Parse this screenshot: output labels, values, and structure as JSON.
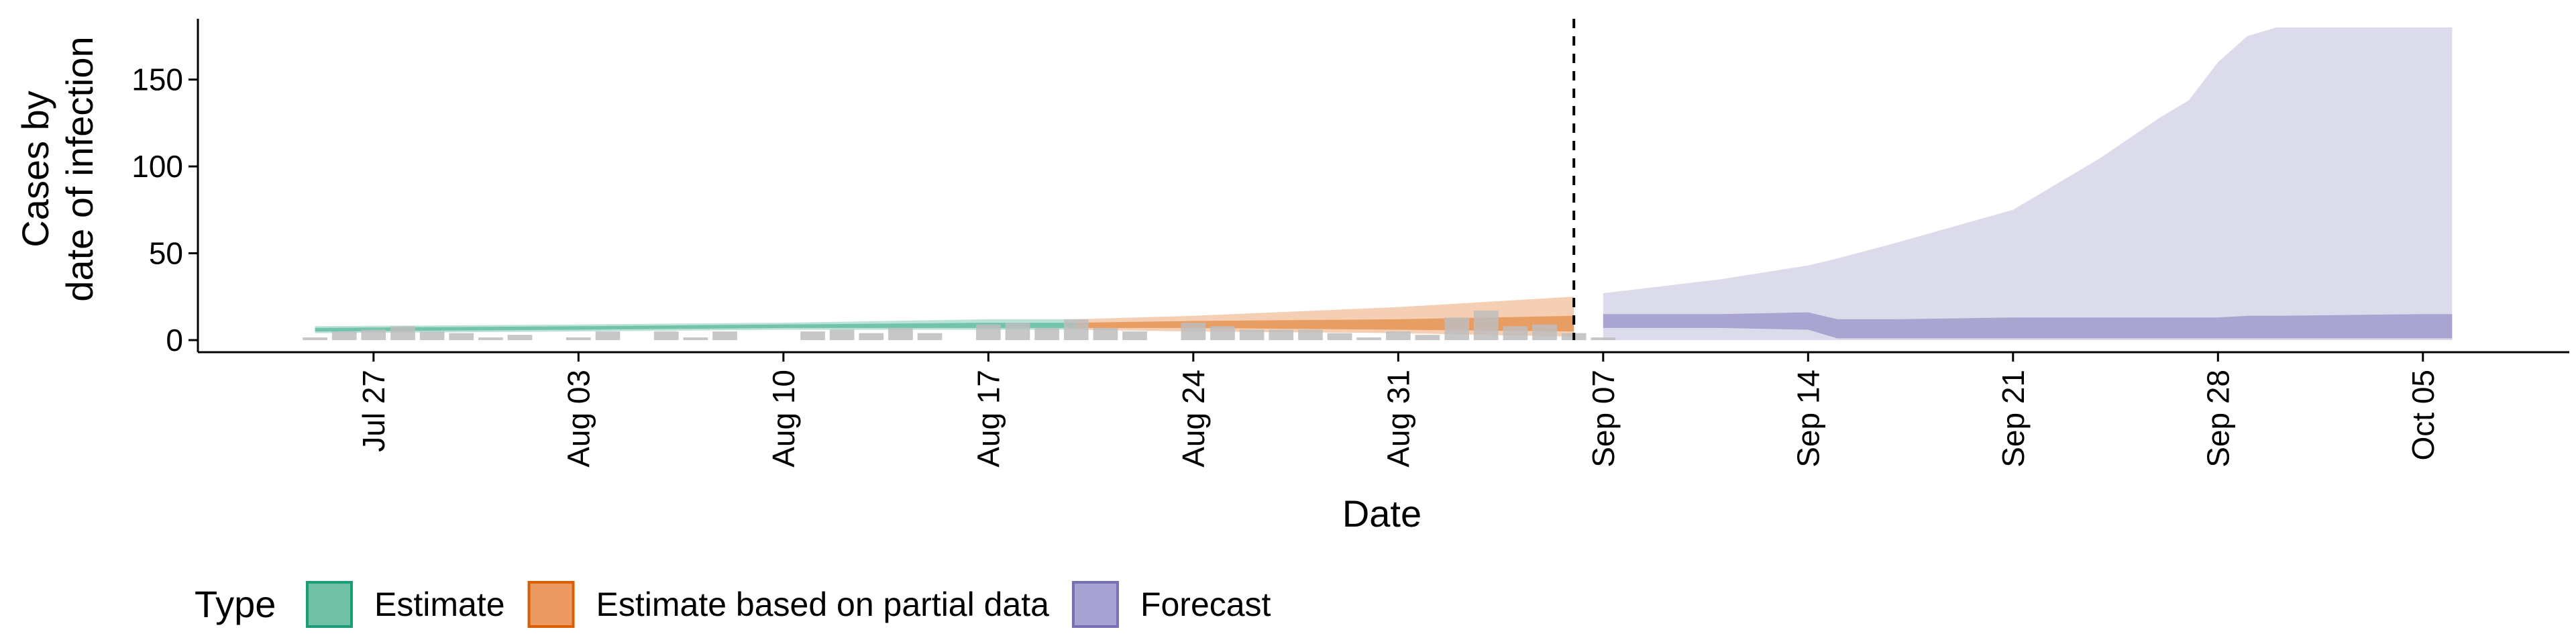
{
  "chart_data": {
    "type": "area",
    "xlabel": "Date",
    "ylabel": [
      "Cases by",
      "date of infection"
    ],
    "ylim": [
      0,
      185
    ],
    "yticks": [
      0,
      50,
      100,
      150
    ],
    "x_domain": [
      "2020-07-21",
      "2020-10-10"
    ],
    "xticks": [
      {
        "date": "2020-07-27",
        "label": "Jul 27"
      },
      {
        "date": "2020-08-03",
        "label": "Aug 03"
      },
      {
        "date": "2020-08-10",
        "label": "Aug 10"
      },
      {
        "date": "2020-08-17",
        "label": "Aug 17"
      },
      {
        "date": "2020-08-24",
        "label": "Aug 24"
      },
      {
        "date": "2020-08-31",
        "label": "Aug 31"
      },
      {
        "date": "2020-09-07",
        "label": "Sep 07"
      },
      {
        "date": "2020-09-14",
        "label": "Sep 14"
      },
      {
        "date": "2020-09-21",
        "label": "Sep 21"
      },
      {
        "date": "2020-09-28",
        "label": "Sep 28"
      },
      {
        "date": "2020-10-05",
        "label": "Oct 05"
      }
    ],
    "vline_date": "2020-09-06",
    "grid": false,
    "legend": {
      "title": "Type",
      "position": "bottom",
      "items": [
        {
          "label": "Estimate",
          "fill": "#71c1a6",
          "stroke": "#1b9e77"
        },
        {
          "label": "Estimate based on partial data",
          "fill": "#eb9b61",
          "stroke": "#d95f02"
        },
        {
          "label": "Forecast",
          "fill": "#a7a3d2",
          "stroke": "#7570b3"
        }
      ]
    },
    "observed_cases": {
      "color": "#bdbdbd",
      "points": [
        {
          "date": "2020-07-25",
          "value": 1
        },
        {
          "date": "2020-07-26",
          "value": 5
        },
        {
          "date": "2020-07-27",
          "value": 6
        },
        {
          "date": "2020-07-28",
          "value": 8
        },
        {
          "date": "2020-07-29",
          "value": 5
        },
        {
          "date": "2020-07-30",
          "value": 4
        },
        {
          "date": "2020-07-31",
          "value": 1
        },
        {
          "date": "2020-08-01",
          "value": 3
        },
        {
          "date": "2020-08-03",
          "value": 0
        },
        {
          "date": "2020-08-04",
          "value": 5
        },
        {
          "date": "2020-08-06",
          "value": 5
        },
        {
          "date": "2020-08-07",
          "value": 1
        },
        {
          "date": "2020-08-08",
          "value": 5
        },
        {
          "date": "2020-08-11",
          "value": 5
        },
        {
          "date": "2020-08-12",
          "value": 6
        },
        {
          "date": "2020-08-13",
          "value": 4
        },
        {
          "date": "2020-08-14",
          "value": 7
        },
        {
          "date": "2020-08-15",
          "value": 4
        },
        {
          "date": "2020-08-17",
          "value": 9
        },
        {
          "date": "2020-08-18",
          "value": 10
        },
        {
          "date": "2020-08-19",
          "value": 7
        },
        {
          "date": "2020-08-20",
          "value": 12
        },
        {
          "date": "2020-08-21",
          "value": 7
        },
        {
          "date": "2020-08-22",
          "value": 5
        },
        {
          "date": "2020-08-24",
          "value": 10
        },
        {
          "date": "2020-08-25",
          "value": 8
        },
        {
          "date": "2020-08-26",
          "value": 6
        },
        {
          "date": "2020-08-27",
          "value": 6
        },
        {
          "date": "2020-08-28",
          "value": 6
        },
        {
          "date": "2020-08-29",
          "value": 4
        },
        {
          "date": "2020-08-30",
          "value": 1
        },
        {
          "date": "2020-08-31",
          "value": 5
        },
        {
          "date": "2020-09-01",
          "value": 3
        },
        {
          "date": "2020-09-02",
          "value": 13
        },
        {
          "date": "2020-09-03",
          "value": 17
        },
        {
          "date": "2020-09-04",
          "value": 8
        },
        {
          "date": "2020-09-05",
          "value": 9
        },
        {
          "date": "2020-09-06",
          "value": 4
        },
        {
          "date": "2020-09-07",
          "value": 1
        }
      ]
    },
    "series": [
      {
        "name": "Estimate",
        "color": "#1b9e77",
        "points": [
          {
            "date": "2020-07-25",
            "lo90": 4,
            "hi90": 8,
            "lo50": 5,
            "hi50": 7
          },
          {
            "date": "2020-08-03",
            "lo90": 5,
            "hi90": 9,
            "lo50": 6,
            "hi50": 8
          },
          {
            "date": "2020-08-10",
            "lo90": 6,
            "hi90": 10,
            "lo50": 7,
            "hi50": 9
          },
          {
            "date": "2020-08-17",
            "lo90": 6,
            "hi90": 12,
            "lo50": 7,
            "hi50": 10
          },
          {
            "date": "2020-08-20",
            "lo90": 6,
            "hi90": 12,
            "lo50": 7,
            "hi50": 10
          }
        ]
      },
      {
        "name": "Estimate based on partial data",
        "color": "#d95f02",
        "points": [
          {
            "date": "2020-08-20",
            "lo90": 6,
            "hi90": 12,
            "lo50": 7,
            "hi50": 10
          },
          {
            "date": "2020-08-24",
            "lo90": 5,
            "hi90": 14,
            "lo50": 7,
            "hi50": 11
          },
          {
            "date": "2020-08-31",
            "lo90": 4,
            "hi90": 19,
            "lo50": 6,
            "hi50": 12
          },
          {
            "date": "2020-09-06",
            "lo90": 2,
            "hi90": 25,
            "lo50": 5,
            "hi50": 14
          }
        ]
      },
      {
        "name": "Forecast",
        "color": "#7570b3",
        "points": [
          {
            "date": "2020-09-07",
            "lo90": 0,
            "hi90": 27,
            "lo50": 7,
            "hi50": 15
          },
          {
            "date": "2020-09-11",
            "lo90": 0,
            "hi90": 35,
            "lo50": 7,
            "hi50": 15
          },
          {
            "date": "2020-09-14",
            "lo90": 0,
            "hi90": 43,
            "lo50": 6,
            "hi50": 16
          },
          {
            "date": "2020-09-15",
            "lo90": 0,
            "hi90": 47,
            "lo50": 1,
            "hi50": 12
          },
          {
            "date": "2020-09-17",
            "lo90": 0,
            "hi90": 56,
            "lo50": 1,
            "hi50": 12
          },
          {
            "date": "2020-09-21",
            "lo90": 0,
            "hi90": 75,
            "lo50": 1,
            "hi50": 13
          },
          {
            "date": "2020-09-24",
            "lo90": 0,
            "hi90": 105,
            "lo50": 1,
            "hi50": 13
          },
          {
            "date": "2020-09-26",
            "lo90": 0,
            "hi90": 128,
            "lo50": 1,
            "hi50": 13
          },
          {
            "date": "2020-09-27",
            "lo90": 0,
            "hi90": 138,
            "lo50": 1,
            "hi50": 13
          },
          {
            "date": "2020-09-28",
            "lo90": 0,
            "hi90": 160,
            "lo50": 1,
            "hi50": 13
          },
          {
            "date": "2020-09-29",
            "lo90": 0,
            "hi90": 175,
            "lo50": 1,
            "hi50": 14
          },
          {
            "date": "2020-09-30",
            "lo90": 0,
            "hi90": 180,
            "lo50": 1,
            "hi50": 14
          },
          {
            "date": "2020-10-05",
            "lo90": 0,
            "hi90": 180,
            "lo50": 1,
            "hi50": 15
          },
          {
            "date": "2020-10-06",
            "lo90": 0,
            "hi90": 180,
            "lo50": 1,
            "hi50": 15
          }
        ]
      }
    ]
  }
}
